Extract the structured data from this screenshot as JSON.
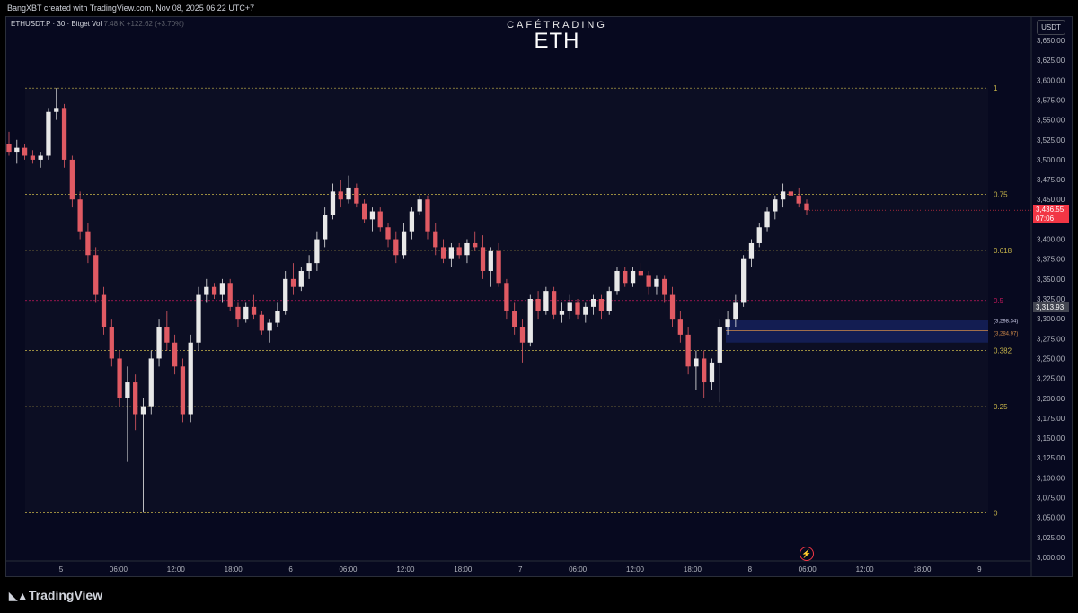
{
  "header": {
    "caption": "BangXBT created with TradingView.com, Nov 08, 2025 06:22 UTC+7"
  },
  "symbol": {
    "name": "ETHUSDT.P · 30 · Bitget",
    "vol_label": "Vol",
    "vol_value": "7.48 K",
    "change": "+122.62 (+3.70%)"
  },
  "brand": {
    "small": "CAFÉTRADING",
    "big": "ETH"
  },
  "price_scale": {
    "currency": "USDT",
    "labels": [
      "3,650.00",
      "3,625.00",
      "3,600.00",
      "3,575.00",
      "3,550.00",
      "3,525.00",
      "3,500.00",
      "3,475.00",
      "3,450.00",
      "3,425.00",
      "3,400.00",
      "3,375.00",
      "3,350.00",
      "3,325.00",
      "3,300.00",
      "3,275.00",
      "3,250.00",
      "3,225.00",
      "3,200.00",
      "3,175.00",
      "3,150.00",
      "3,125.00",
      "3,100.00",
      "3,075.00",
      "3,050.00",
      "3,025.00",
      "3,000.00"
    ],
    "current_price": "3,436.55",
    "countdown": "07:06",
    "crosshair_price": "3,313.93"
  },
  "time_axis": [
    "5",
    "06:00",
    "12:00",
    "18:00",
    "6",
    "06:00",
    "12:00",
    "18:00",
    "7",
    "06:00",
    "12:00",
    "18:00",
    "8",
    "06:00",
    "12:00",
    "18:00",
    "9"
  ],
  "fib_labels": [
    "1",
    "0.75",
    "0.618",
    "0.5",
    "0.382",
    "0.25",
    "0"
  ],
  "zone_labels": [
    "(3,298.34)",
    "(3,284.97)"
  ],
  "footer": {
    "logo_text": "TradingView"
  },
  "colors": {
    "up": "#e8e8e8",
    "down": "#e05a63",
    "fib": "#c9b64a",
    "fib_mid": "#c2185b",
    "bg": "#07091f",
    "zone": "#2a1a3a"
  },
  "chart_data": {
    "type": "candlestick",
    "symbol": "ETHUSDT.P",
    "interval": "30",
    "exchange": "Bitget",
    "ylim": [
      3000,
      3665
    ],
    "fibonacci": {
      "levels": [
        1,
        0.75,
        0.618,
        0.5,
        0.382,
        0.25,
        0
      ],
      "price_high": 3590,
      "price_low": 3056
    },
    "zone": {
      "upper": 3298.34,
      "lower": 3284.97
    },
    "last_price": 3436.55,
    "candles": [
      [
        3520,
        3535,
        3505,
        3510
      ],
      [
        3510,
        3525,
        3495,
        3515
      ],
      [
        3515,
        3520,
        3500,
        3505
      ],
      [
        3505,
        3512,
        3495,
        3500
      ],
      [
        3500,
        3510,
        3490,
        3505
      ],
      [
        3505,
        3565,
        3500,
        3560
      ],
      [
        3560,
        3590,
        3550,
        3565
      ],
      [
        3565,
        3570,
        3490,
        3500
      ],
      [
        3500,
        3505,
        3440,
        3450
      ],
      [
        3450,
        3460,
        3400,
        3410
      ],
      [
        3410,
        3420,
        3370,
        3380
      ],
      [
        3380,
        3390,
        3320,
        3330
      ],
      [
        3330,
        3340,
        3280,
        3290
      ],
      [
        3290,
        3300,
        3240,
        3250
      ],
      [
        3250,
        3260,
        3190,
        3200
      ],
      [
        3200,
        3240,
        3120,
        3220
      ],
      [
        3220,
        3230,
        3160,
        3180
      ],
      [
        3180,
        3200,
        3056,
        3190
      ],
      [
        3190,
        3260,
        3180,
        3250
      ],
      [
        3250,
        3300,
        3240,
        3290
      ],
      [
        3290,
        3310,
        3260,
        3270
      ],
      [
        3270,
        3280,
        3230,
        3240
      ],
      [
        3240,
        3250,
        3170,
        3180
      ],
      [
        3180,
        3280,
        3170,
        3270
      ],
      [
        3270,
        3340,
        3260,
        3330
      ],
      [
        3330,
        3350,
        3320,
        3340
      ],
      [
        3340,
        3345,
        3325,
        3330
      ],
      [
        3330,
        3350,
        3320,
        3345
      ],
      [
        3345,
        3350,
        3310,
        3315
      ],
      [
        3315,
        3320,
        3290,
        3300
      ],
      [
        3300,
        3320,
        3295,
        3315
      ],
      [
        3315,
        3330,
        3300,
        3305
      ],
      [
        3305,
        3310,
        3280,
        3285
      ],
      [
        3285,
        3300,
        3270,
        3295
      ],
      [
        3295,
        3320,
        3290,
        3310
      ],
      [
        3310,
        3360,
        3305,
        3350
      ],
      [
        3350,
        3370,
        3330,
        3340
      ],
      [
        3340,
        3365,
        3335,
        3360
      ],
      [
        3360,
        3380,
        3350,
        3370
      ],
      [
        3370,
        3410,
        3360,
        3400
      ],
      [
        3400,
        3440,
        3390,
        3430
      ],
      [
        3430,
        3470,
        3425,
        3460
      ],
      [
        3460,
        3475,
        3440,
        3450
      ],
      [
        3450,
        3480,
        3445,
        3465
      ],
      [
        3465,
        3470,
        3440,
        3445
      ],
      [
        3445,
        3450,
        3420,
        3425
      ],
      [
        3425,
        3440,
        3410,
        3435
      ],
      [
        3435,
        3440,
        3410,
        3415
      ],
      [
        3415,
        3420,
        3390,
        3400
      ],
      [
        3400,
        3410,
        3370,
        3380
      ],
      [
        3380,
        3420,
        3375,
        3410
      ],
      [
        3410,
        3440,
        3400,
        3435
      ],
      [
        3435,
        3455,
        3430,
        3450
      ],
      [
        3450,
        3455,
        3400,
        3410
      ],
      [
        3410,
        3420,
        3380,
        3390
      ],
      [
        3390,
        3400,
        3370,
        3375
      ],
      [
        3375,
        3395,
        3365,
        3390
      ],
      [
        3390,
        3395,
        3375,
        3380
      ],
      [
        3380,
        3400,
        3370,
        3395
      ],
      [
        3395,
        3410,
        3385,
        3390
      ],
      [
        3390,
        3405,
        3350,
        3360
      ],
      [
        3360,
        3390,
        3340,
        3385
      ],
      [
        3385,
        3395,
        3340,
        3345
      ],
      [
        3345,
        3350,
        3300,
        3310
      ],
      [
        3310,
        3320,
        3280,
        3290
      ],
      [
        3290,
        3300,
        3245,
        3270
      ],
      [
        3270,
        3330,
        3265,
        3325
      ],
      [
        3325,
        3335,
        3300,
        3310
      ],
      [
        3310,
        3340,
        3305,
        3335
      ],
      [
        3335,
        3340,
        3300,
        3305
      ],
      [
        3305,
        3320,
        3295,
        3310
      ],
      [
        3310,
        3330,
        3300,
        3320
      ],
      [
        3320,
        3325,
        3300,
        3305
      ],
      [
        3305,
        3320,
        3295,
        3315
      ],
      [
        3315,
        3330,
        3305,
        3325
      ],
      [
        3325,
        3330,
        3300,
        3310
      ],
      [
        3310,
        3340,
        3305,
        3335
      ],
      [
        3335,
        3365,
        3330,
        3360
      ],
      [
        3360,
        3365,
        3340,
        3345
      ],
      [
        3345,
        3365,
        3340,
        3360
      ],
      [
        3360,
        3370,
        3350,
        3355
      ],
      [
        3355,
        3360,
        3330,
        3340
      ],
      [
        3340,
        3355,
        3330,
        3350
      ],
      [
        3350,
        3355,
        3320,
        3330
      ],
      [
        3330,
        3340,
        3290,
        3300
      ],
      [
        3300,
        3310,
        3270,
        3280
      ],
      [
        3280,
        3290,
        3230,
        3240
      ],
      [
        3240,
        3260,
        3210,
        3250
      ],
      [
        3250,
        3260,
        3200,
        3220
      ],
      [
        3220,
        3250,
        3210,
        3245
      ],
      [
        3245,
        3300,
        3195,
        3290
      ],
      [
        3290,
        3310,
        3280,
        3300
      ],
      [
        3300,
        3330,
        3290,
        3320
      ],
      [
        3320,
        3380,
        3315,
        3375
      ],
      [
        3375,
        3400,
        3365,
        3395
      ],
      [
        3395,
        3420,
        3390,
        3415
      ],
      [
        3415,
        3440,
        3410,
        3435
      ],
      [
        3435,
        3455,
        3425,
        3450
      ],
      [
        3450,
        3470,
        3440,
        3460
      ],
      [
        3460,
        3470,
        3445,
        3455
      ],
      [
        3455,
        3465,
        3440,
        3445
      ],
      [
        3445,
        3450,
        3430,
        3436.55
      ]
    ]
  }
}
